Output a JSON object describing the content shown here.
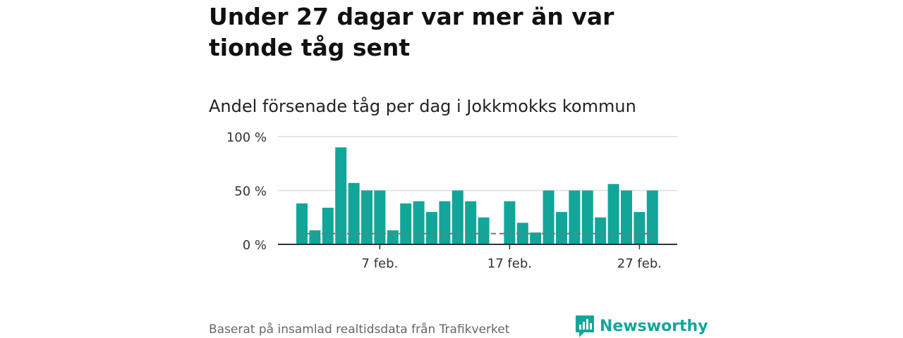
{
  "title": "Under 27 dagar var mer än var tionde tåg sent",
  "subtitle": "Andel försenade tåg per dag i Jokkmokks kommun",
  "footer": "Baserat på insamlad realtidsdata från Trafikverket",
  "brand": {
    "name": "Newsworthy",
    "icon": "newsworthy-logo-icon"
  },
  "colors": {
    "bar": "#12a69a",
    "reference_line": "#777777",
    "grid": "#dddddd",
    "axis": "#333333"
  },
  "chart_data": {
    "type": "bar",
    "x_dates": [
      "1 feb.",
      "2 feb.",
      "3 feb.",
      "4 feb.",
      "5 feb.",
      "6 feb.",
      "7 feb.",
      "8 feb.",
      "9 feb.",
      "10 feb.",
      "11 feb.",
      "12 feb.",
      "13 feb.",
      "14 feb.",
      "15 feb.",
      "16 feb.",
      "17 feb.",
      "18 feb.",
      "19 feb.",
      "20 feb.",
      "21 feb.",
      "22 feb.",
      "23 feb.",
      "24 feb.",
      "25 feb.",
      "26 feb.",
      "27 feb.",
      "28 feb."
    ],
    "values": [
      38,
      13,
      34,
      90,
      57,
      50,
      50,
      13,
      38,
      40,
      30,
      40,
      50,
      40,
      25,
      0,
      40,
      20,
      11,
      50,
      30,
      50,
      50,
      25,
      56,
      50,
      30,
      50
    ],
    "reference_value": 10,
    "ylim": [
      0,
      100
    ],
    "y_ticks": [
      {
        "value": 0,
        "label": "0 %"
      },
      {
        "value": 50,
        "label": "50 %"
      },
      {
        "value": 100,
        "label": "100 %"
      }
    ],
    "x_ticks": [
      {
        "index": 6,
        "label": "7 feb."
      },
      {
        "index": 16,
        "label": "17 feb."
      },
      {
        "index": 26,
        "label": "27 feb."
      }
    ],
    "xlabel": "",
    "ylabel": "",
    "grid": true
  }
}
